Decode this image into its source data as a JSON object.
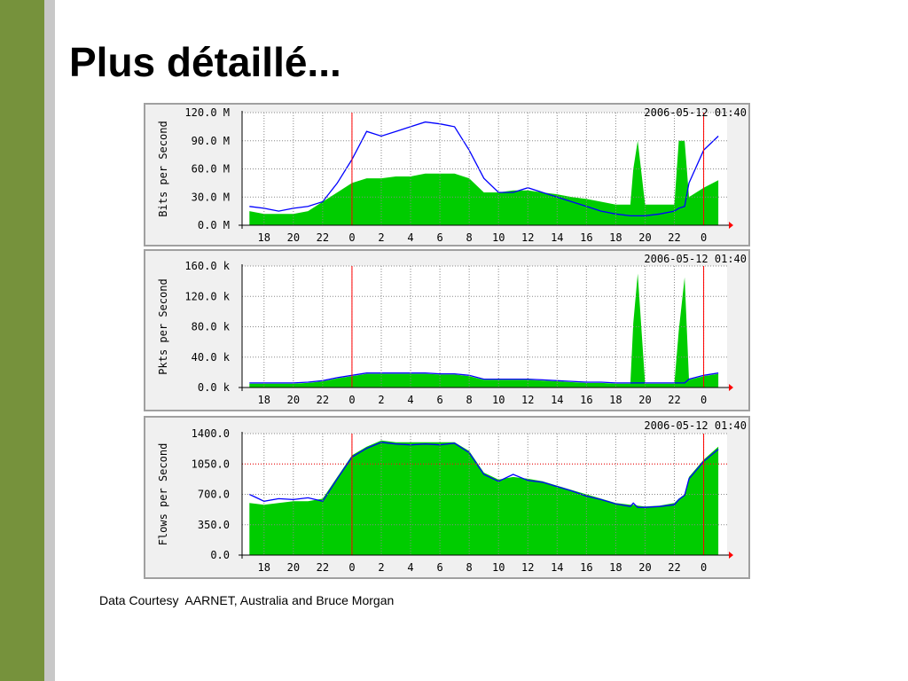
{
  "title": "Plus détaillé...",
  "footer": "Data Courtesy  AARNET, Australia and Bruce Morgan",
  "chart_data": [
    {
      "type": "area-line",
      "y_label": "Bits per Second",
      "stamp": "2006-05-12 01:40",
      "x": [
        17,
        18,
        19,
        20,
        21,
        22,
        23,
        24,
        25,
        26,
        27,
        28,
        29,
        30,
        31,
        32,
        33,
        34,
        35,
        36,
        37,
        38,
        39,
        40,
        41,
        42,
        43,
        43.2,
        43.5,
        44,
        45,
        46,
        46.3,
        46.7,
        47,
        48,
        49
      ],
      "series": [
        {
          "style": "area",
          "color": "#00cc00",
          "values": [
            15000000,
            12000000,
            12000000,
            12000000,
            15000000,
            25000000,
            35000000,
            45000000,
            50000000,
            50000000,
            52000000,
            52000000,
            55000000,
            55000000,
            55000000,
            50000000,
            35000000,
            35000000,
            37000000,
            37000000,
            35000000,
            33000000,
            30000000,
            28000000,
            25000000,
            22000000,
            22000000,
            60000000,
            90000000,
            22000000,
            22000000,
            22000000,
            90000000,
            90000000,
            30000000,
            40000000,
            48000000
          ]
        },
        {
          "style": "line",
          "color": "#0000ff",
          "values": [
            20000000,
            18000000,
            15000000,
            18000000,
            20000000,
            25000000,
            45000000,
            70000000,
            100000000,
            95000000,
            100000000,
            105000000,
            110000000,
            108000000,
            105000000,
            80000000,
            50000000,
            35000000,
            35000000,
            40000000,
            35000000,
            30000000,
            25000000,
            20000000,
            15000000,
            12000000,
            10000000,
            10000000,
            10000000,
            10000000,
            12000000,
            15000000,
            18000000,
            20000000,
            45000000,
            80000000,
            95000000
          ]
        }
      ],
      "xlim": [
        16.5,
        49.6
      ],
      "xticks": [
        18,
        20,
        22,
        {
          "value": 24,
          "label": "0"
        },
        {
          "value": 26,
          "label": "2"
        },
        {
          "value": 28,
          "label": "4"
        },
        {
          "value": 30,
          "label": "6"
        },
        {
          "value": 32,
          "label": "8"
        },
        {
          "value": 34,
          "label": "10"
        },
        {
          "value": 36,
          "label": "12"
        },
        {
          "value": 38,
          "label": "14"
        },
        {
          "value": 40,
          "label": "16"
        },
        {
          "value": 42,
          "label": "18"
        },
        {
          "value": 44,
          "label": "20"
        },
        {
          "value": 46,
          "label": "22"
        },
        {
          "value": 48,
          "label": "0"
        }
      ],
      "ylim": [
        0,
        120000000
      ],
      "yticks": [
        {
          "value": 0,
          "label": "0.0 M"
        },
        {
          "value": 30000000,
          "label": "30.0 M"
        },
        {
          "value": 60000000,
          "label": "60.0 M"
        },
        {
          "value": 90000000,
          "label": "90.0 M"
        },
        {
          "value": 120000000,
          "label": "120.0 M"
        }
      ],
      "vlines": [
        24,
        48
      ],
      "vline_color": "#ff0000",
      "grid": true
    },
    {
      "type": "area-line",
      "y_label": "Pkts per Second",
      "stamp": "2006-05-12 01:40",
      "x": [
        17,
        18,
        19,
        20,
        21,
        22,
        23,
        24,
        25,
        26,
        27,
        28,
        29,
        30,
        31,
        32,
        33,
        34,
        35,
        36,
        37,
        38,
        39,
        40,
        41,
        42,
        43,
        43.2,
        43.5,
        44,
        45,
        46,
        46.3,
        46.7,
        47,
        48,
        49
      ],
      "series": [
        {
          "style": "area",
          "color": "#00cc00",
          "values": [
            5000,
            5000,
            5000,
            5000,
            6000,
            8000,
            12000,
            15000,
            18000,
            18000,
            18000,
            18000,
            18000,
            17000,
            17000,
            15000,
            10000,
            10000,
            10000,
            10000,
            9000,
            8000,
            7000,
            6000,
            6000,
            5000,
            5000,
            85000,
            150000,
            5000,
            5000,
            5000,
            75000,
            145000,
            10000,
            15000,
            18000
          ]
        },
        {
          "style": "line",
          "color": "#0000ff",
          "values": [
            6000,
            6000,
            6000,
            6000,
            7000,
            9000,
            13000,
            16000,
            19000,
            19000,
            19000,
            19000,
            19000,
            18000,
            18000,
            16000,
            11000,
            11000,
            11000,
            11000,
            10000,
            9000,
            8000,
            7000,
            7000,
            6000,
            6000,
            6000,
            6000,
            6000,
            6000,
            6000,
            6000,
            6000,
            11000,
            16000,
            19000
          ]
        }
      ],
      "xlim": [
        16.5,
        49.6
      ],
      "xticks": [
        18,
        20,
        22,
        {
          "value": 24,
          "label": "0"
        },
        {
          "value": 26,
          "label": "2"
        },
        {
          "value": 28,
          "label": "4"
        },
        {
          "value": 30,
          "label": "6"
        },
        {
          "value": 32,
          "label": "8"
        },
        {
          "value": 34,
          "label": "10"
        },
        {
          "value": 36,
          "label": "12"
        },
        {
          "value": 38,
          "label": "14"
        },
        {
          "value": 40,
          "label": "16"
        },
        {
          "value": 42,
          "label": "18"
        },
        {
          "value": 44,
          "label": "20"
        },
        {
          "value": 46,
          "label": "22"
        },
        {
          "value": 48,
          "label": "0"
        }
      ],
      "ylim": [
        0,
        160000
      ],
      "yticks": [
        {
          "value": 0,
          "label": "0.0 k"
        },
        {
          "value": 40000,
          "label": "40.0 k"
        },
        {
          "value": 80000,
          "label": "80.0 k"
        },
        {
          "value": 120000,
          "label": "120.0 k"
        },
        {
          "value": 160000,
          "label": "160.0 k"
        }
      ],
      "vlines": [
        24,
        48
      ],
      "vline_color": "#ff0000",
      "grid": true
    },
    {
      "type": "area-line",
      "y_label": "Flows per Second",
      "stamp": "2006-05-12 01:40",
      "x": [
        17,
        18,
        19,
        20,
        21,
        22,
        23,
        24,
        25,
        26,
        27,
        28,
        29,
        30,
        31,
        32,
        33,
        34,
        35,
        36,
        37,
        38,
        39,
        40,
        41,
        42,
        43,
        43.2,
        43.5,
        44,
        45,
        46,
        46.3,
        46.7,
        47,
        48,
        49
      ],
      "series": [
        {
          "style": "area",
          "color": "#00cc00",
          "values": [
            600,
            580,
            600,
            620,
            620,
            650,
            900,
            1150,
            1250,
            1320,
            1300,
            1300,
            1300,
            1300,
            1300,
            1200,
            950,
            870,
            900,
            880,
            850,
            800,
            750,
            700,
            650,
            600,
            580,
            580,
            570,
            560,
            570,
            600,
            650,
            700,
            900,
            1100,
            1250
          ]
        },
        {
          "style": "line",
          "color": "#0000ff",
          "values": [
            700,
            620,
            650,
            640,
            660,
            620,
            880,
            1130,
            1230,
            1300,
            1280,
            1270,
            1280,
            1270,
            1290,
            1180,
            930,
            850,
            930,
            860,
            840,
            790,
            740,
            680,
            640,
            590,
            560,
            600,
            550,
            550,
            560,
            580,
            640,
            690,
            880,
            1080,
            1220
          ]
        }
      ],
      "xlim": [
        16.5,
        49.6
      ],
      "xticks": [
        18,
        20,
        22,
        {
          "value": 24,
          "label": "0"
        },
        {
          "value": 26,
          "label": "2"
        },
        {
          "value": 28,
          "label": "4"
        },
        {
          "value": 30,
          "label": "6"
        },
        {
          "value": 32,
          "label": "8"
        },
        {
          "value": 34,
          "label": "10"
        },
        {
          "value": 36,
          "label": "12"
        },
        {
          "value": 38,
          "label": "14"
        },
        {
          "value": 40,
          "label": "16"
        },
        {
          "value": 42,
          "label": "18"
        },
        {
          "value": 44,
          "label": "20"
        },
        {
          "value": 46,
          "label": "22"
        },
        {
          "value": 48,
          "label": "0"
        }
      ],
      "ylim": [
        0,
        1400
      ],
      "yticks": [
        {
          "value": 0,
          "label": "0.0"
        },
        {
          "value": 350,
          "label": "350.0"
        },
        {
          "value": 700,
          "label": "700.0"
        },
        {
          "value": 1050,
          "label": "1050.0"
        },
        {
          "value": 1400,
          "label": "1400.0"
        }
      ],
      "vlines": [
        24,
        48
      ],
      "vline_color": "#ff0000",
      "hline": 1050,
      "grid": true
    }
  ]
}
